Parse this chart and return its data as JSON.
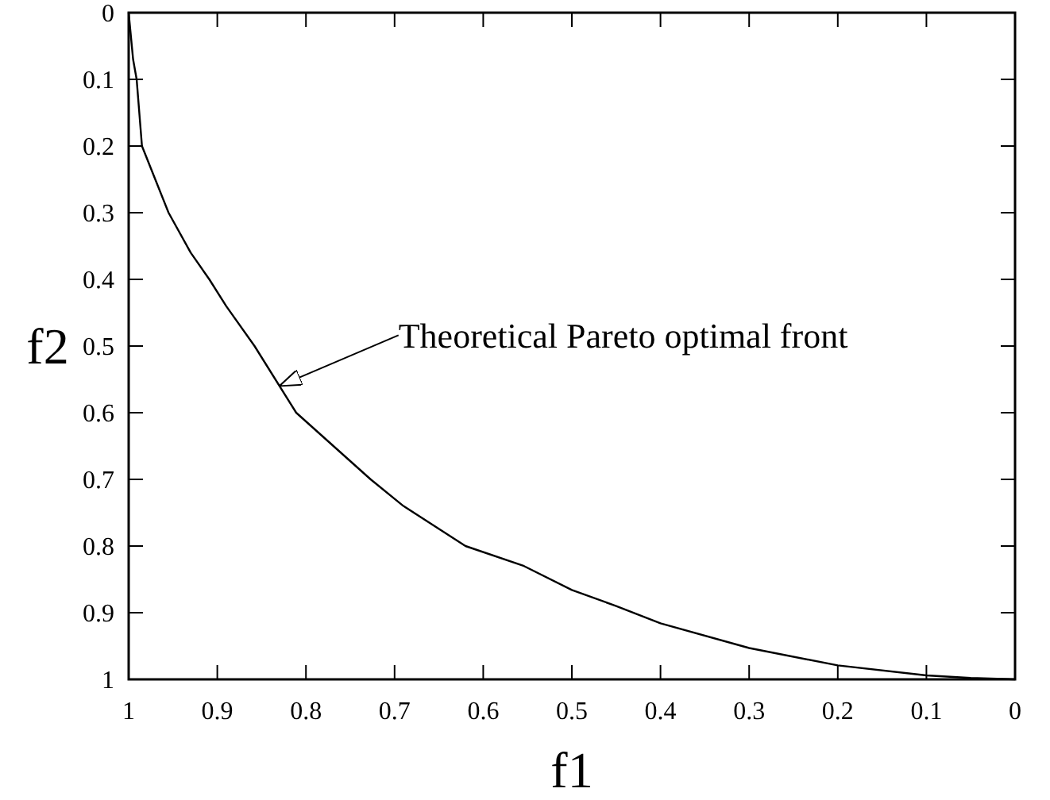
{
  "chart_data": {
    "type": "line",
    "xlabel": "f1",
    "ylabel": "f2",
    "x": [
      1,
      0.995,
      0.991,
      0.985,
      0.97,
      0.955,
      0.93,
      0.909,
      0.89,
      0.858,
      0.811,
      0.727,
      0.69,
      0.62,
      0.554,
      0.5,
      0.45,
      0.4,
      0.3,
      0.2,
      0.1,
      0.05,
      0
    ],
    "series": [
      {
        "color": "#000000",
        "values": [
          0,
          0.07,
          0.1,
          0.2,
          0.25,
          0.3,
          0.36,
          0.4,
          0.44,
          0.5,
          0.6,
          0.7,
          0.74,
          0.8,
          0.83,
          0.866,
          0.89,
          0.916,
          0.953,
          0.979,
          0.994,
          0.998,
          1
        ]
      }
    ],
    "xlim": [
      1,
      0
    ],
    "ylim": [
      1,
      0
    ],
    "xticks": [
      1,
      0.9,
      0.8,
      0.7,
      0.6,
      0.5,
      0.4,
      0.3,
      0.2,
      0.1,
      0
    ],
    "yticks": [
      0,
      0.1,
      0.2,
      0.3,
      0.4,
      0.5,
      0.6,
      0.7,
      0.8,
      0.9,
      1
    ],
    "grid": false,
    "marker": "none",
    "line_style": "solid",
    "annotations": [
      {
        "text": "Theoretical Pareto optimal front",
        "x": 0.83,
        "y": 0.56
      }
    ]
  }
}
